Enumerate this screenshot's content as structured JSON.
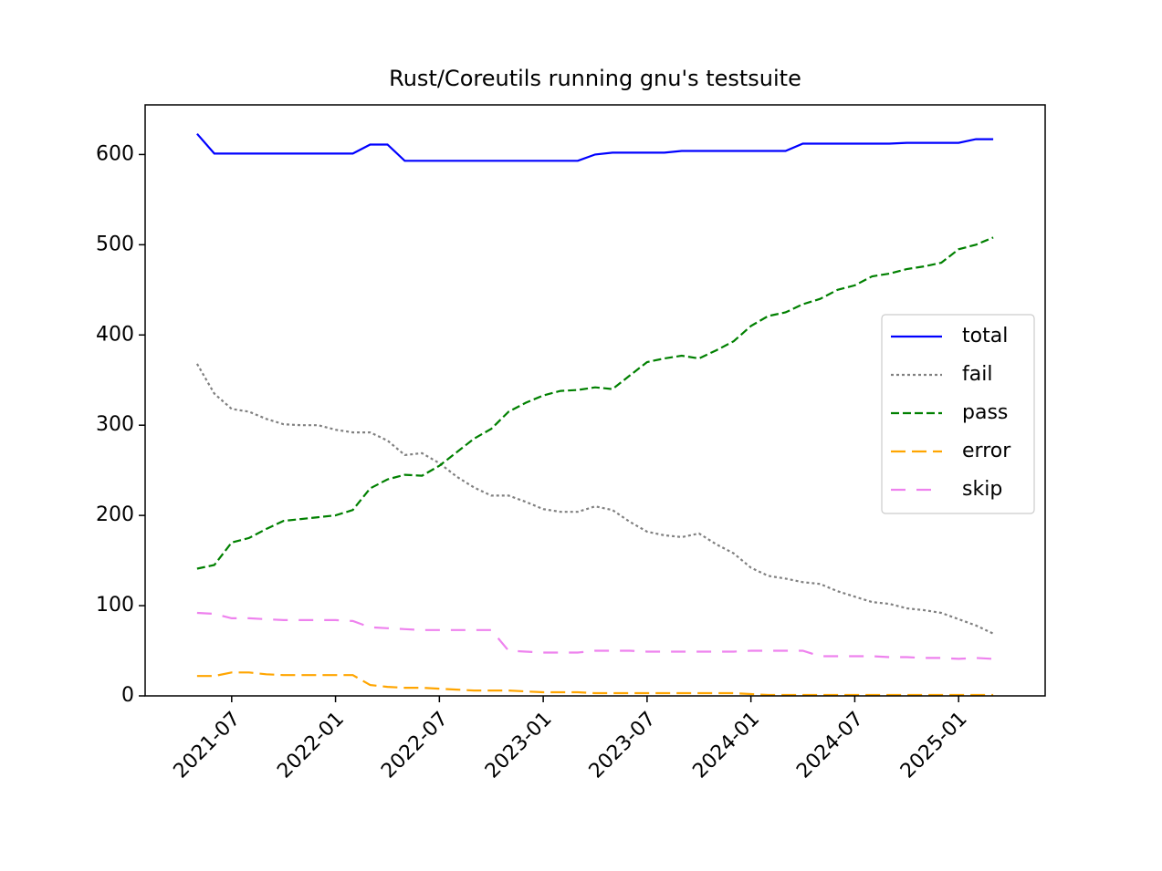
{
  "chart_data": {
    "type": "line",
    "title": "Rust/Coreutils running gnu's testsuite",
    "x": [
      "2021-05",
      "2021-06",
      "2021-07",
      "2021-08",
      "2021-09",
      "2021-10",
      "2021-11",
      "2021-12",
      "2022-01",
      "2022-02",
      "2022-03",
      "2022-04",
      "2022-05",
      "2022-06",
      "2022-07",
      "2022-08",
      "2022-09",
      "2022-10",
      "2022-11",
      "2022-12",
      "2023-01",
      "2023-02",
      "2023-03",
      "2023-04",
      "2023-05",
      "2023-06",
      "2023-07",
      "2023-08",
      "2023-09",
      "2023-10",
      "2023-11",
      "2023-12",
      "2024-01",
      "2024-02",
      "2024-03",
      "2024-04",
      "2024-05",
      "2024-06",
      "2024-07",
      "2024-08",
      "2024-09",
      "2024-10",
      "2024-11",
      "2024-12",
      "2025-01",
      "2025-02",
      "2025-03"
    ],
    "series": [
      {
        "name": "total",
        "color": "#0000ff",
        "dash": "solid",
        "values": [
          623,
          601,
          601,
          601,
          601,
          601,
          601,
          601,
          601,
          601,
          611,
          611,
          593,
          593,
          593,
          593,
          593,
          593,
          593,
          593,
          593,
          593,
          593,
          600,
          602,
          602,
          602,
          602,
          604,
          604,
          604,
          604,
          604,
          604,
          604,
          612,
          612,
          612,
          612,
          612,
          612,
          613,
          613,
          613,
          613,
          617,
          617
        ]
      },
      {
        "name": "fail",
        "color": "#808080",
        "dash": "dotted",
        "values": [
          368,
          335,
          318,
          315,
          307,
          301,
          300,
          300,
          295,
          292,
          292,
          283,
          267,
          269,
          258,
          243,
          231,
          222,
          222,
          215,
          207,
          204,
          204,
          210,
          206,
          193,
          182,
          178,
          176,
          180,
          168,
          158,
          142,
          133,
          130,
          126,
          124,
          116,
          110,
          104,
          102,
          97,
          95,
          92,
          85,
          78,
          69
        ]
      },
      {
        "name": "pass",
        "color": "#008000",
        "dash": "dashed",
        "values": [
          141,
          145,
          170,
          175,
          185,
          194,
          196,
          198,
          200,
          206,
          230,
          240,
          245,
          244,
          255,
          270,
          285,
          296,
          315,
          325,
          333,
          338,
          339,
          342,
          340,
          355,
          370,
          374,
          377,
          374,
          383,
          393,
          410,
          421,
          425,
          434,
          440,
          450,
          455,
          465,
          468,
          473,
          476,
          480,
          495,
          500,
          508
        ]
      },
      {
        "name": "error",
        "color": "#ffa500",
        "dash": "longdash",
        "values": [
          22,
          22,
          26,
          26,
          24,
          23,
          23,
          23,
          23,
          23,
          12,
          10,
          9,
          9,
          8,
          7,
          6,
          6,
          6,
          5,
          4,
          4,
          4,
          3,
          3,
          3,
          3,
          3,
          3,
          3,
          3,
          3,
          2,
          1,
          1,
          1,
          1,
          1,
          1,
          1,
          1,
          1,
          1,
          1,
          1,
          1,
          1
        ]
      },
      {
        "name": "skip",
        "color": "#ee82ee",
        "dash": "loosedash",
        "values": [
          92,
          91,
          86,
          86,
          85,
          84,
          84,
          84,
          84,
          83,
          76,
          75,
          74,
          73,
          73,
          73,
          73,
          73,
          50,
          49,
          48,
          48,
          48,
          50,
          50,
          50,
          49,
          49,
          49,
          49,
          49,
          49,
          50,
          50,
          50,
          50,
          44,
          44,
          44,
          44,
          43,
          43,
          42,
          42,
          41,
          42,
          41
        ]
      }
    ],
    "xlim": [
      "2021-02",
      "2025-06"
    ],
    "xticks": [
      "2021-07",
      "2022-01",
      "2022-07",
      "2023-01",
      "2023-07",
      "2024-01",
      "2024-07",
      "2025-01"
    ],
    "ylim": [
      0,
      655
    ],
    "yticks": [
      0,
      100,
      200,
      300,
      400,
      500,
      600
    ],
    "legend": "center right"
  }
}
